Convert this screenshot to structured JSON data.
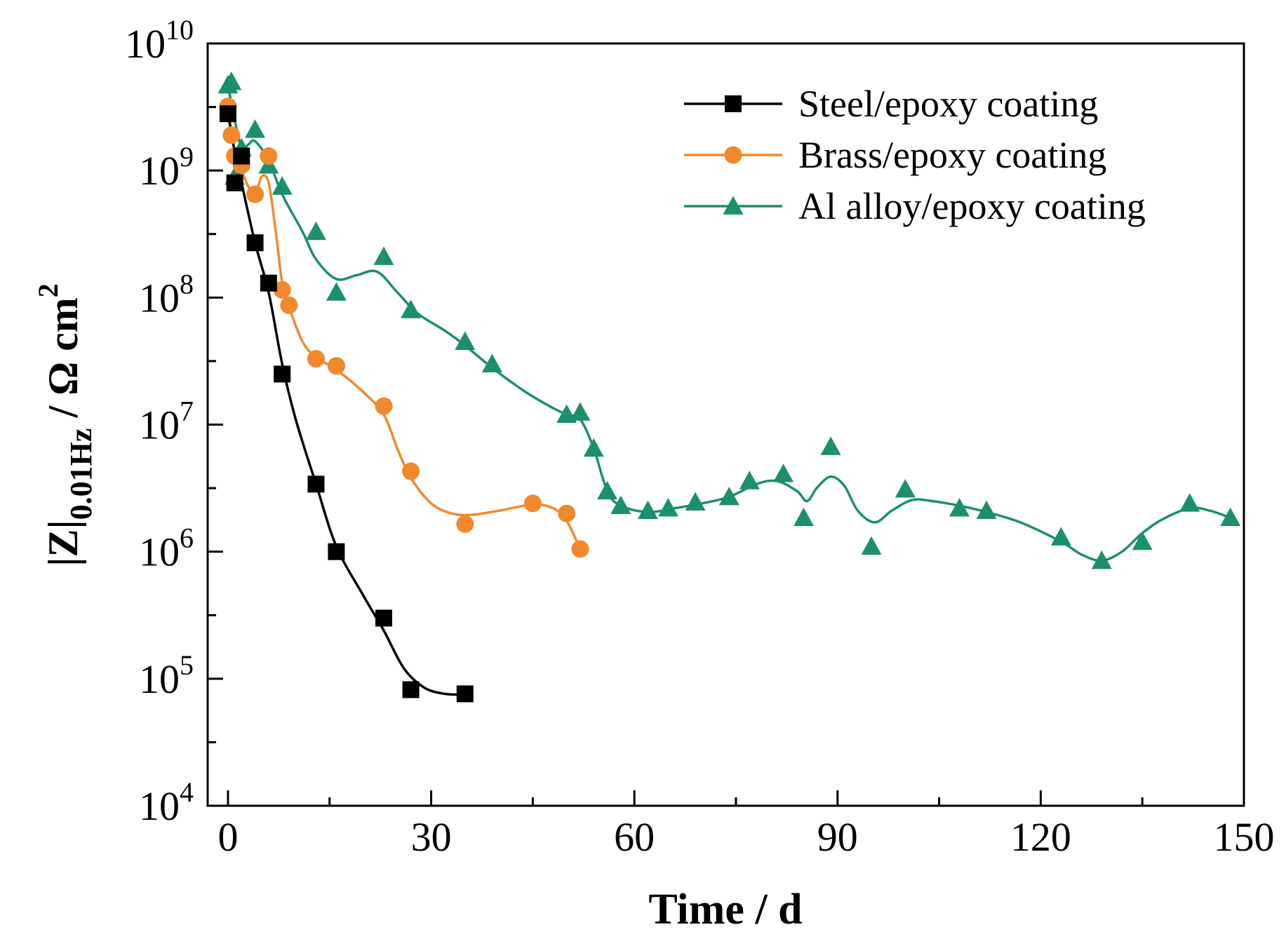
{
  "chart_data": {
    "type": "line",
    "title": "",
    "xlabel": "Time / d",
    "ylabel": {
      "main": "|Z|",
      "subscript": "0.01Hz",
      "unit": " / Ω cm",
      "unit_superscript": "2"
    },
    "xlim": [
      -3,
      150
    ],
    "ylim": [
      10000,
      10000000000
    ],
    "yscale": "log",
    "x_ticks": [
      0,
      30,
      60,
      90,
      120,
      150
    ],
    "x_tick_labels": [
      "0",
      "30",
      "60",
      "90",
      "120",
      "150"
    ],
    "y_ticks": [
      10000,
      100000,
      1000000,
      10000000,
      100000000,
      1000000000,
      10000000000
    ],
    "y_tick_base": [
      "10",
      "10",
      "10",
      "10",
      "10",
      "10",
      "10"
    ],
    "y_tick_exponents": [
      "4",
      "5",
      "6",
      "7",
      "8",
      "9",
      "10"
    ],
    "legend_position": "top-right",
    "series": [
      {
        "name": "Steel/epoxy coating",
        "color": "#000000",
        "marker": "square",
        "x": [
          0,
          1,
          2,
          4,
          6,
          8,
          13,
          16,
          23,
          27,
          35
        ],
        "y": [
          2800000000,
          800000000,
          1300000000,
          270000000,
          130000000,
          25000000,
          3400000,
          1000000,
          300000,
          82000,
          76000
        ]
      },
      {
        "name": "Brass/epoxy coating",
        "color": "#F0882D",
        "marker": "circle",
        "x": [
          0,
          0.5,
          1,
          2,
          4,
          6,
          8,
          9,
          13,
          16,
          23,
          27,
          35,
          45,
          50,
          52
        ],
        "y": [
          3200000000,
          1900000000,
          1300000000,
          1100000000,
          650000000,
          1300000000,
          115000000,
          87000000,
          33000000,
          29000000,
          14000000,
          4300000,
          1650000,
          2400000,
          2000000,
          1050000
        ]
      },
      {
        "name": "Al alloy/epoxy coating",
        "color": "#1B8F6E",
        "marker": "triangle",
        "x": [
          0,
          0.5,
          1,
          2,
          4,
          6,
          8,
          13,
          16,
          23,
          27,
          35,
          39,
          50,
          52,
          54,
          56,
          58,
          62,
          65,
          69,
          74,
          77,
          82,
          85,
          89,
          95,
          100,
          108,
          112,
          123,
          129,
          135,
          142,
          148
        ],
        "y": [
          4700000000,
          5000000000,
          900000000,
          1500000000,
          2100000000,
          1100000000,
          750000000,
          330000000,
          110000000,
          210000000,
          80000000,
          45000000,
          30000000,
          12000000,
          12500000,
          6500000,
          3000000,
          2300000,
          2100000,
          2200000,
          2450000,
          2700000,
          3600000,
          4100000,
          1850000,
          6700000,
          1100000,
          3100000,
          2200000,
          2100000,
          1300000,
          850000,
          1200000,
          2400000,
          1850000
        ]
      }
    ],
    "smooth_curves": [
      {
        "series": "Steel/epoxy coating",
        "x": [
          0,
          1,
          2,
          4,
          6,
          8,
          10,
          13,
          16,
          20,
          23,
          26,
          29,
          32,
          35
        ],
        "y": [
          2800000000,
          1400000000,
          800000000,
          270000000,
          110000000,
          30000000,
          11000000,
          3400000,
          1100000,
          450000,
          240000,
          120000,
          85000,
          76000,
          75000
        ]
      },
      {
        "series": "Brass/epoxy coating",
        "x": [
          0,
          1,
          2,
          3,
          4,
          5,
          6,
          7,
          8,
          9,
          11,
          13,
          16,
          20,
          23,
          25,
          27,
          30,
          33,
          36,
          40,
          45,
          48,
          50,
          52
        ],
        "y": [
          3200000000,
          1400000000,
          1000000000,
          750000000,
          650000000,
          900000000,
          800000000,
          350000000,
          130000000,
          85000000,
          45000000,
          34000000,
          27000000,
          18000000,
          12000000,
          6500000,
          3800000,
          2400000,
          2000000,
          1950000,
          2100000,
          2350000,
          2200000,
          1750000,
          1050000
        ]
      },
      {
        "series": "Al alloy/epoxy coating",
        "x": [
          0,
          1,
          2,
          3,
          4,
          6,
          8,
          11,
          13,
          16,
          19,
          22,
          25,
          28,
          32,
          35,
          39,
          44,
          48,
          50,
          52,
          54,
          56,
          58,
          62,
          66,
          70,
          74,
          78,
          81,
          84,
          85.5,
          87,
          89,
          91,
          93,
          95.5,
          98,
          101,
          104,
          108,
          112,
          117,
          123,
          126,
          129,
          132,
          135,
          138,
          142,
          145,
          148
        ],
        "y": [
          4700000000,
          2500000000,
          1500000000,
          1600000000,
          1700000000,
          1200000000,
          650000000,
          330000000,
          200000000,
          140000000,
          150000000,
          160000000,
          110000000,
          75000000,
          55000000,
          42000000,
          28000000,
          18000000,
          13500000,
          12000000,
          11000000,
          6500000,
          3000000,
          2300000,
          2050000,
          2200000,
          2400000,
          2700000,
          3400000,
          3600000,
          3000000,
          2500000,
          3200000,
          3900000,
          3300000,
          2100000,
          1700000,
          2100000,
          2550000,
          2500000,
          2300000,
          2050000,
          1700000,
          1200000,
          950000,
          850000,
          1000000,
          1400000,
          1800000,
          2200000,
          2100000,
          1850000
        ]
      }
    ]
  }
}
